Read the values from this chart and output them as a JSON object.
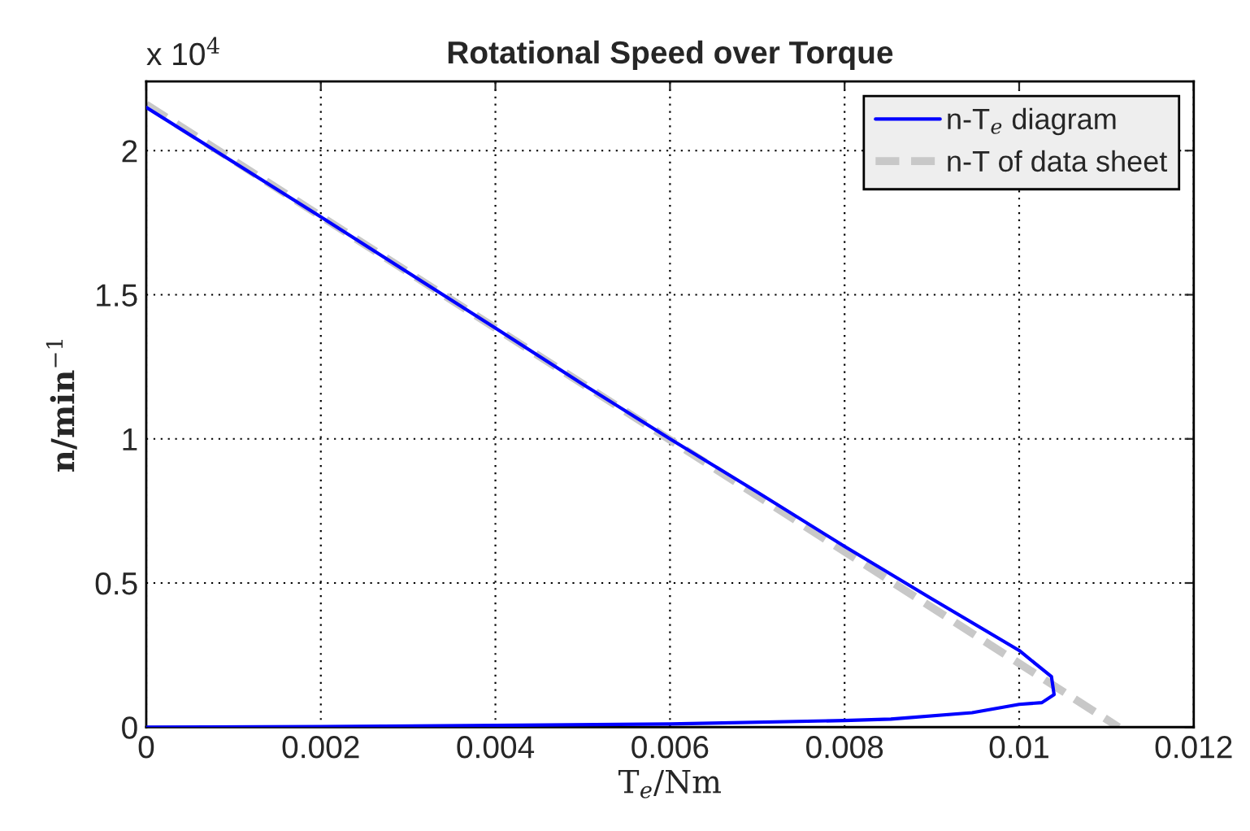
{
  "chart_data": {
    "type": "line",
    "title": "Rotational Speed over Torque",
    "xlabel": "T$_{e}$/Nm",
    "ylabel": "n/min$^{−1}$",
    "annotations": [
      "x 10$^{4}$"
    ],
    "series": [
      {
        "name": "n-T$_{e}$ diagram",
        "color": "#0000ff",
        "line_style": "solid",
        "x": [
          0,
          0.002,
          0.004,
          0.005,
          0.006,
          0.007,
          0.008,
          0.009,
          0.01,
          0.01037,
          0.0104,
          0.01026,
          0.01,
          0.00946,
          0.00853,
          0.008,
          0.006,
          0.004,
          0.002,
          0
        ],
        "values": [
          2.15,
          1.77,
          1.384,
          1.19,
          1.0,
          0.815,
          0.627,
          0.445,
          0.266,
          0.175,
          0.113,
          0.085,
          0.079,
          0.05,
          0.028,
          0.023,
          0.011,
          0.006,
          0.002,
          0
        ]
      },
      {
        "name": "n-T of data sheet",
        "color": "#c8c8c8",
        "line_style": "dashed",
        "x": [
          0,
          0.01114
        ],
        "values": [
          2.16,
          0
        ]
      }
    ],
    "xlim": [
      0,
      0.012
    ],
    "xticks": [
      0,
      0.002,
      0.004,
      0.006,
      0.008,
      0.01,
      0.012
    ],
    "ylim": [
      0,
      2.24
    ],
    "yticks": [
      0,
      0.5,
      1,
      1.5,
      2
    ],
    "grid": true,
    "legend": "top right",
    "marker": "none"
  }
}
